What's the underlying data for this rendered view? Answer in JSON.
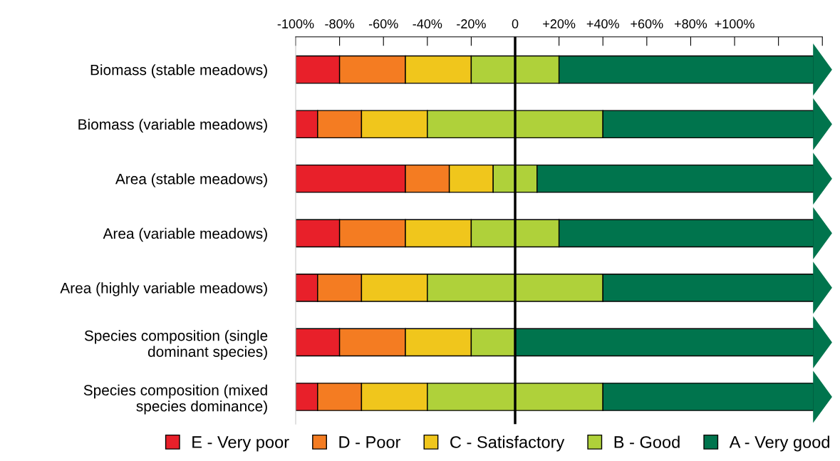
{
  "chart_data": {
    "type": "bar",
    "orientation": "horizontal",
    "categories": [
      "Biomass (stable meadows)",
      "Biomass (variable meadows)",
      "Area (stable meadows)",
      "Area (variable meadows)",
      "Area (highly variable meadows)",
      "Species composition (single\ndominant species)",
      "Species composition (mixed\nspecies dominance)"
    ],
    "series": [
      {
        "name": "E - Very poor",
        "color": "#e8202a",
        "base": [
          -100,
          -100,
          -100,
          -100,
          -100,
          -100,
          -100
        ],
        "values": [
          20,
          10,
          50,
          20,
          10,
          20,
          10
        ]
      },
      {
        "name": "D - Poor",
        "color": "#f47c22",
        "base": [
          -80,
          -90,
          -50,
          -80,
          -90,
          -80,
          -90
        ],
        "values": [
          30,
          20,
          20,
          30,
          20,
          30,
          20
        ]
      },
      {
        "name": "C - Satisfactory",
        "color": "#f0c61c",
        "base": [
          -50,
          -70,
          -30,
          -50,
          -70,
          -50,
          -70
        ],
        "values": [
          30,
          30,
          20,
          30,
          30,
          30,
          30
        ]
      },
      {
        "name": "B - Good",
        "color": "#afd13a",
        "base": [
          -20,
          -40,
          -10,
          -20,
          -40,
          -20,
          -40
        ],
        "values": [
          40,
          80,
          20,
          40,
          80,
          20,
          80
        ]
      },
      {
        "name": "A - Very good",
        "color": "#00744d",
        "base": [
          20,
          40,
          10,
          20,
          40,
          0,
          40
        ],
        "values": [
          116,
          96,
          126,
          116,
          96,
          136,
          96
        ]
      }
    ],
    "xlim": [
      -100,
      140
    ],
    "xticks": [
      {
        "value": -100,
        "label": "-100%"
      },
      {
        "value": -80,
        "label": "-80%"
      },
      {
        "value": -60,
        "label": "-60%"
      },
      {
        "value": -40,
        "label": "-40%"
      },
      {
        "value": -20,
        "label": "-20%"
      },
      0,
      {
        "value": 20,
        "label": "+20%"
      },
      {
        "value": 40,
        "label": "+40%"
      },
      {
        "value": 60,
        "label": "+60%"
      },
      {
        "value": 80,
        "label": "+80%"
      },
      {
        "value": 100,
        "label": "+100%"
      },
      {
        "value": 120,
        "label": null
      },
      {
        "value": 140,
        "label": null
      }
    ],
    "ref_lines": [
      {
        "axis": "x",
        "value": 0,
        "color": "#000000"
      }
    ],
    "legend": "bottom",
    "grid": false
  }
}
